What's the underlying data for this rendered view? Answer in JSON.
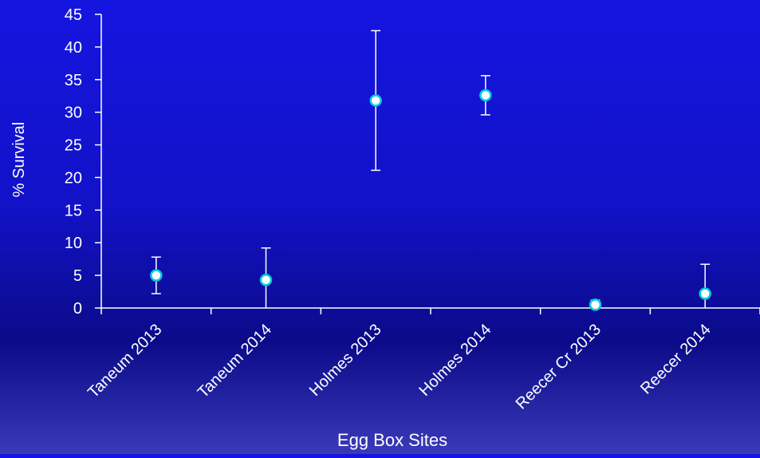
{
  "chart_data": {
    "type": "scatter",
    "title": "",
    "xlabel": "Egg Box Sites",
    "ylabel": "% Survival",
    "ylim": [
      0,
      45
    ],
    "yticks": [
      0,
      5,
      10,
      15,
      20,
      25,
      30,
      35,
      40,
      45
    ],
    "categories": [
      "Taneum 2013",
      "Taneum 2014",
      "Holmes 2013",
      "Holmes 2014",
      "Reecer Cr 2013",
      "Reecer 2014"
    ],
    "values": [
      5.0,
      4.3,
      31.8,
      32.6,
      0.5,
      2.2
    ],
    "error_low": [
      2.2,
      0.0,
      21.1,
      29.6,
      0.0,
      0.0
    ],
    "error_high": [
      7.8,
      9.2,
      42.5,
      35.6,
      1.2,
      6.7
    ],
    "grid": false,
    "legend": "none",
    "colors": {
      "axis": "#ffffff",
      "marker_stroke": "#00ccdd",
      "marker_fill": "#ffffff",
      "text": "#ffffff"
    }
  }
}
